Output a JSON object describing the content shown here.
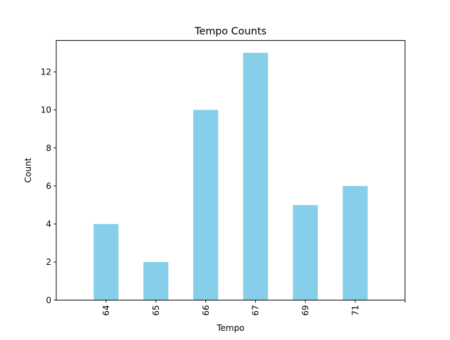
{
  "chart_data": {
    "type": "bar",
    "title": "Tempo Counts",
    "xlabel": "Tempo",
    "ylabel": "Count",
    "categories": [
      "64",
      "65",
      "66",
      "67",
      "69",
      "71"
    ],
    "values": [
      4,
      2,
      10,
      13,
      5,
      6
    ],
    "ylim": [
      0,
      13.65
    ],
    "yticks": [
      0,
      2,
      4,
      6,
      8,
      10,
      12
    ],
    "bar_color": "#87ceeb",
    "grid": false,
    "legend": "none",
    "xtick_rotation": "vertical"
  }
}
